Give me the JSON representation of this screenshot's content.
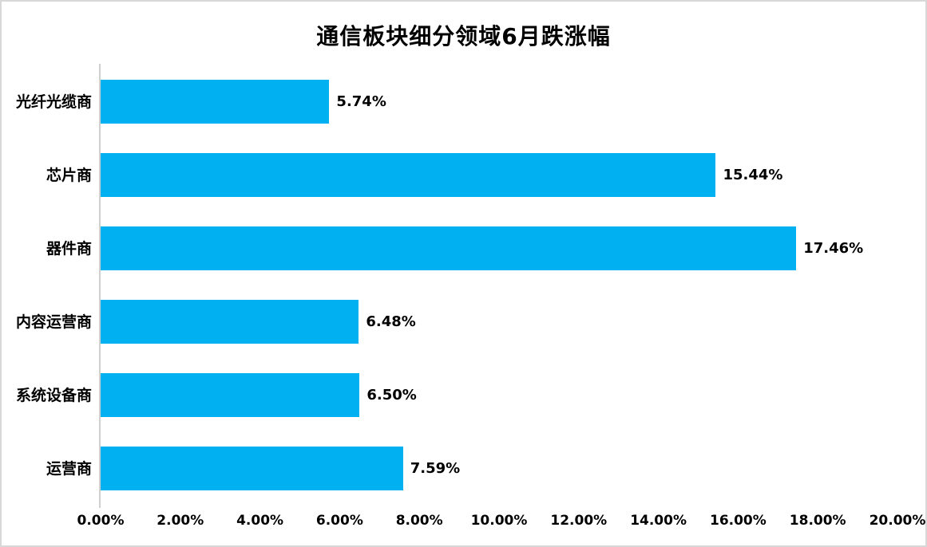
{
  "chart_data": {
    "type": "bar",
    "orientation": "horizontal",
    "title": "通信板块细分领域6月跌涨幅",
    "categories": [
      "光纤光缆商",
      "芯片商",
      "器件商",
      "内容运营商",
      "系统设备商",
      "运营商"
    ],
    "values": [
      5.74,
      15.44,
      17.46,
      6.48,
      6.5,
      7.59
    ],
    "data_labels": [
      "5.74%",
      "15.44%",
      "17.46%",
      "6.48%",
      "6.50%",
      "7.59%"
    ],
    "xlabel": "",
    "ylabel": "",
    "x_axis": {
      "min": 0,
      "max": 20,
      "tick_step": 2,
      "tick_labels": [
        "0.00%",
        "2.00%",
        "4.00%",
        "6.00%",
        "8.00%",
        "10.00%",
        "12.00%",
        "14.00%",
        "16.00%",
        "18.00%",
        "20.00%"
      ]
    },
    "grid": false,
    "legend": false,
    "colors": {
      "bar": "#00B0F0",
      "axis_line": "#cfcfcf",
      "text": "#000000",
      "background": "#ffffff",
      "border": "#d8d8d8"
    }
  }
}
